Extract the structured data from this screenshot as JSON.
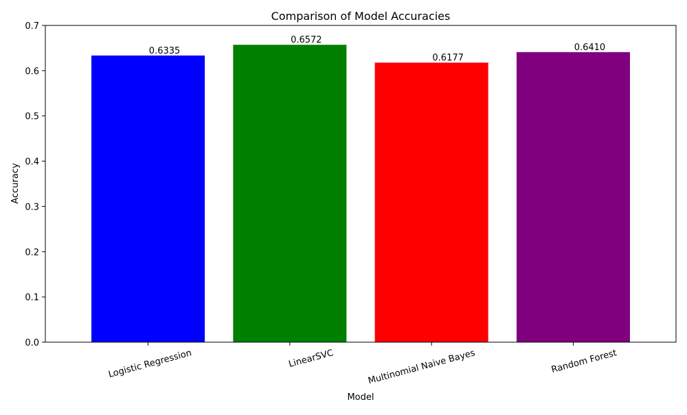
{
  "chart_data": {
    "type": "bar",
    "title": "Comparison of Model Accuracies",
    "xlabel": "Model",
    "ylabel": "Accuracy",
    "categories": [
      "Logistic Regression",
      "LinearSVC",
      "Multinomial Naive Bayes",
      "Random Forest"
    ],
    "values": [
      0.6335,
      0.6572,
      0.6177,
      0.641
    ],
    "value_labels": [
      "0.6335",
      "0.6572",
      "0.6177",
      "0.6410"
    ],
    "colors": [
      "#0000ff",
      "#008000",
      "#ff0000",
      "#800080"
    ],
    "ylim": [
      0,
      0.7
    ],
    "yticks": [
      0.0,
      0.1,
      0.2,
      0.3,
      0.4,
      0.5,
      0.6,
      0.7
    ],
    "ytick_labels": [
      "0.0",
      "0.1",
      "0.2",
      "0.3",
      "0.4",
      "0.5",
      "0.6",
      "0.7"
    ],
    "xtick_rotation_deg": 15,
    "grid": false,
    "legend": "none"
  }
}
